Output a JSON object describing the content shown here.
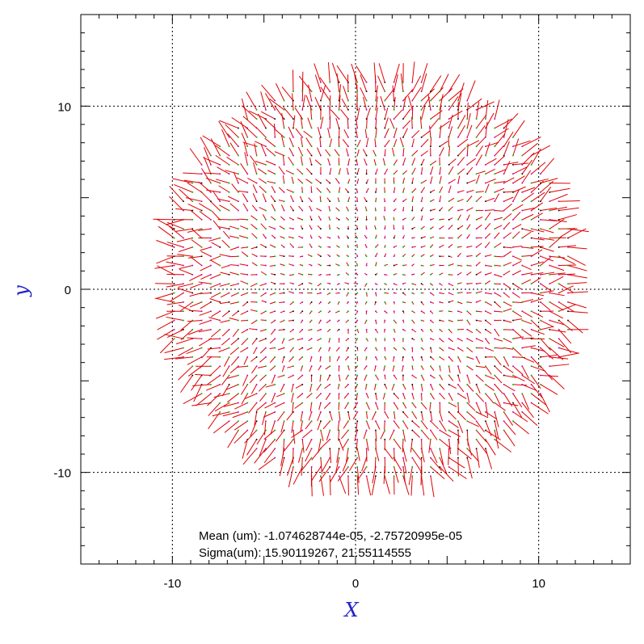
{
  "chart_data": {
    "type": "scatter",
    "title": "",
    "xlabel": "X",
    "ylabel": "y",
    "xlim": [
      -15,
      15
    ],
    "ylim": [
      -15,
      15
    ],
    "grid": true,
    "grid_values": [
      -10,
      0,
      10
    ],
    "x_tick_labels": [
      {
        "value": -10,
        "label": "-10"
      },
      {
        "value": 0,
        "label": "0"
      },
      {
        "value": 10,
        "label": "10"
      }
    ],
    "y_tick_labels": [
      {
        "value": 10,
        "label": "10"
      },
      {
        "value": 0,
        "label": "0"
      },
      {
        "value": -10,
        "label": "-10"
      }
    ],
    "field": {
      "description_shape": "circular grid of displacement vectors",
      "center": [
        0.8,
        0.5
      ],
      "radius": 11.2,
      "grid_spacing": 0.5,
      "vector_color": "#e00000",
      "marker_color_a": "#00b400",
      "marker_color_b": "#c000c0",
      "marker_color_c": "#000000"
    },
    "annotations": [
      {
        "text": "Mean (um): -1.074628744e-05, -2.75720995e-05"
      },
      {
        "text": "Sigma(um): 15.90119267, 21.55114555"
      }
    ]
  }
}
